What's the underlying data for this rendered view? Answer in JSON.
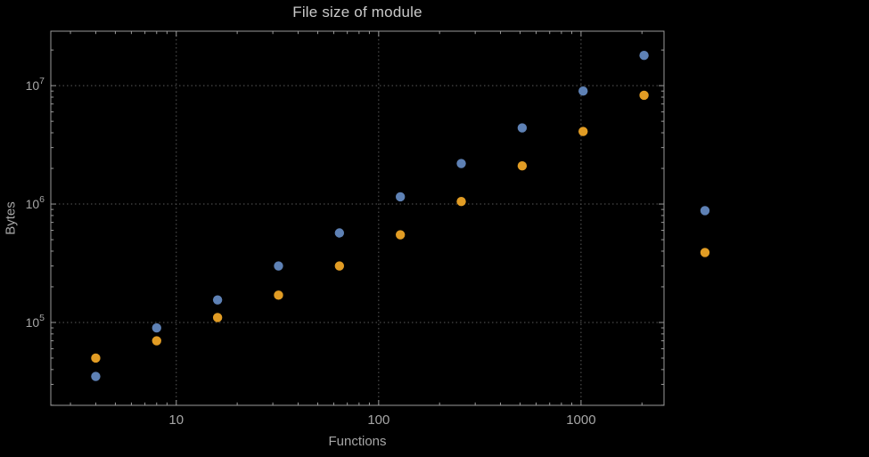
{
  "chart_data": {
    "type": "scatter",
    "title": "File size of module",
    "xlabel": "Functions",
    "ylabel": "Bytes",
    "x_scale": "log",
    "y_scale": "log",
    "grid": "dotted",
    "legend": "none",
    "x": [
      4,
      8,
      16,
      32,
      64,
      128,
      256,
      512,
      1024,
      2048,
      4096
    ],
    "series": [
      {
        "name": "blue",
        "color": "#5e81b5",
        "values": [
          35000,
          90000,
          155000,
          300000,
          570000,
          1150000,
          2200000,
          4400000,
          9000000,
          18000000,
          880000
        ]
      },
      {
        "name": "orange",
        "color": "#e19c24",
        "values": [
          50000,
          70000,
          110000,
          170000,
          300000,
          550000,
          1050000,
          2100000,
          4100000,
          8300000,
          390000
        ]
      }
    ],
    "x_ticks": [
      {
        "value": 10,
        "label": "10"
      },
      {
        "value": 100,
        "label": "100"
      },
      {
        "value": 1000,
        "label": "1000"
      }
    ],
    "y_ticks": [
      {
        "value": 100000,
        "base": "10",
        "exp": "5"
      },
      {
        "value": 1000000,
        "base": "10",
        "exp": "6"
      },
      {
        "value": 10000000,
        "base": "10",
        "exp": "7"
      }
    ],
    "x_log_range": [
      0.38,
      3.41
    ],
    "y_log_range": [
      4.3,
      7.46
    ],
    "colors": {
      "background": "#000000",
      "frame": "#9a9a9a",
      "grid": "#5a5a5a",
      "text": "#a6a6a6",
      "title": "#c9c9c9",
      "point_blue": "#5e81b5",
      "point_orange": "#e19c24"
    }
  }
}
